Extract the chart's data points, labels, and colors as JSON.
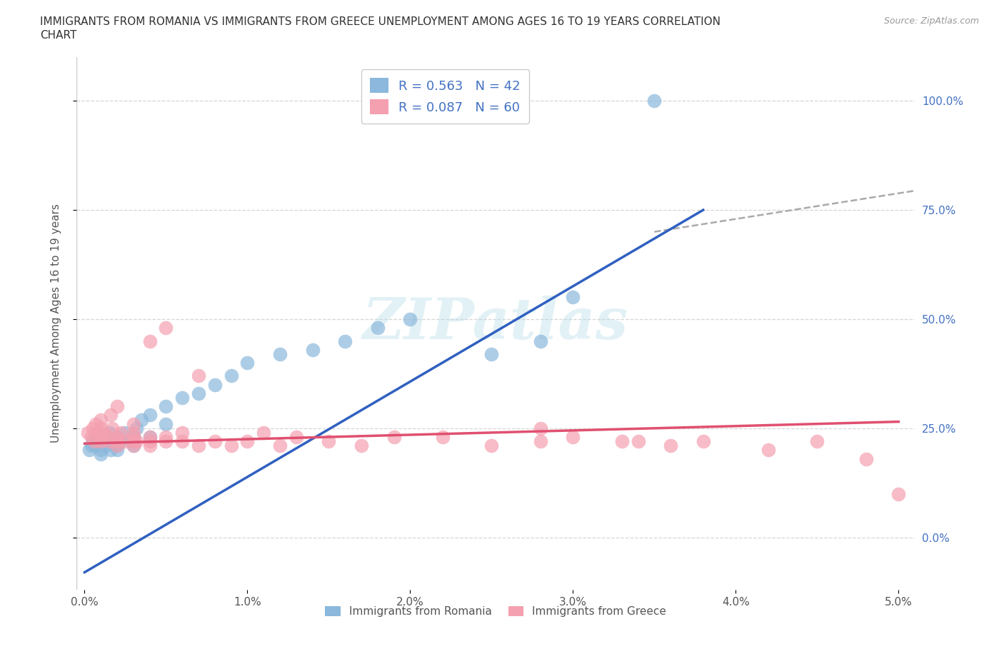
{
  "title_line1": "IMMIGRANTS FROM ROMANIA VS IMMIGRANTS FROM GREECE UNEMPLOYMENT AMONG AGES 16 TO 19 YEARS CORRELATION",
  "title_line2": "CHART",
  "source_text": "Source: ZipAtlas.com",
  "ylabel": "Unemployment Among Ages 16 to 19 years",
  "xlim": [
    -0.0005,
    0.051
  ],
  "ylim": [
    -0.12,
    1.1
  ],
  "xticks": [
    0.0,
    0.01,
    0.02,
    0.03,
    0.04,
    0.05
  ],
  "xticklabels": [
    "0.0%",
    "1.0%",
    "2.0%",
    "3.0%",
    "4.0%",
    "5.0%"
  ],
  "yticks": [
    0.0,
    0.25,
    0.5,
    0.75,
    1.0
  ],
  "yticklabels_right": [
    "0.0%",
    "25.0%",
    "50.0%",
    "75.0%",
    "100.0%"
  ],
  "romania_color": "#8BB8DC",
  "greece_color": "#F4A0B0",
  "romania_line_color": "#3060C0",
  "greece_line_color": "#E05070",
  "dash_line_color": "#AAAAAA",
  "romania_R": 0.563,
  "romania_N": 42,
  "greece_R": 0.087,
  "greece_N": 60,
  "romania_scatter_x": [
    0.0003,
    0.0004,
    0.0005,
    0.0007,
    0.0008,
    0.001,
    0.001,
    0.001,
    0.0012,
    0.0013,
    0.0015,
    0.0015,
    0.0016,
    0.0017,
    0.002,
    0.002,
    0.002,
    0.0022,
    0.0025,
    0.003,
    0.003,
    0.003,
    0.0032,
    0.0035,
    0.004,
    0.004,
    0.005,
    0.005,
    0.006,
    0.007,
    0.008,
    0.009,
    0.01,
    0.012,
    0.014,
    0.016,
    0.018,
    0.02,
    0.025,
    0.028,
    0.03,
    0.035
  ],
  "romania_scatter_y": [
    0.2,
    0.21,
    0.22,
    0.21,
    0.23,
    0.22,
    0.2,
    0.19,
    0.23,
    0.21,
    0.22,
    0.24,
    0.2,
    0.22,
    0.21,
    0.23,
    0.2,
    0.22,
    0.24,
    0.22,
    0.23,
    0.21,
    0.25,
    0.27,
    0.23,
    0.28,
    0.26,
    0.3,
    0.32,
    0.33,
    0.35,
    0.37,
    0.4,
    0.42,
    0.43,
    0.45,
    0.48,
    0.5,
    0.42,
    0.45,
    0.55,
    1.0
  ],
  "greece_scatter_x": [
    0.0002,
    0.0004,
    0.0005,
    0.0006,
    0.0007,
    0.0008,
    0.001,
    0.001,
    0.001,
    0.001,
    0.0012,
    0.0014,
    0.0015,
    0.0016,
    0.0017,
    0.002,
    0.002,
    0.002,
    0.002,
    0.0022,
    0.0025,
    0.003,
    0.003,
    0.003,
    0.003,
    0.003,
    0.0032,
    0.004,
    0.004,
    0.004,
    0.004,
    0.005,
    0.005,
    0.005,
    0.006,
    0.006,
    0.007,
    0.007,
    0.008,
    0.009,
    0.01,
    0.011,
    0.012,
    0.013,
    0.015,
    0.017,
    0.019,
    0.022,
    0.025,
    0.028,
    0.03,
    0.033,
    0.036,
    0.038,
    0.042,
    0.045,
    0.048,
    0.05,
    0.028,
    0.034
  ],
  "greece_scatter_y": [
    0.24,
    0.23,
    0.25,
    0.22,
    0.26,
    0.24,
    0.22,
    0.23,
    0.25,
    0.27,
    0.24,
    0.23,
    0.22,
    0.28,
    0.25,
    0.22,
    0.21,
    0.23,
    0.3,
    0.24,
    0.22,
    0.21,
    0.22,
    0.24,
    0.23,
    0.26,
    0.22,
    0.21,
    0.22,
    0.23,
    0.45,
    0.22,
    0.23,
    0.48,
    0.22,
    0.24,
    0.21,
    0.37,
    0.22,
    0.21,
    0.22,
    0.24,
    0.21,
    0.23,
    0.22,
    0.21,
    0.23,
    0.23,
    0.21,
    0.22,
    0.23,
    0.22,
    0.21,
    0.22,
    0.2,
    0.22,
    0.18,
    0.1,
    0.25,
    0.22
  ],
  "legend_label_romania": "Immigrants from Romania",
  "legend_label_greece": "Immigrants from Greece",
  "watermark": "ZIPatlas",
  "background_color": "#ffffff",
  "grid_color": "#CCCCCC",
  "romania_line_x0": 0.0,
  "romania_line_y0": -0.08,
  "romania_line_x1": 0.038,
  "romania_line_y1": 0.75,
  "greece_line_x0": 0.0,
  "greece_line_y0": 0.215,
  "greece_line_x1": 0.05,
  "greece_line_y1": 0.265,
  "dash_line_x0": 0.035,
  "dash_line_y0": 0.7,
  "dash_line_x1": 0.052,
  "dash_line_y1": 0.8
}
